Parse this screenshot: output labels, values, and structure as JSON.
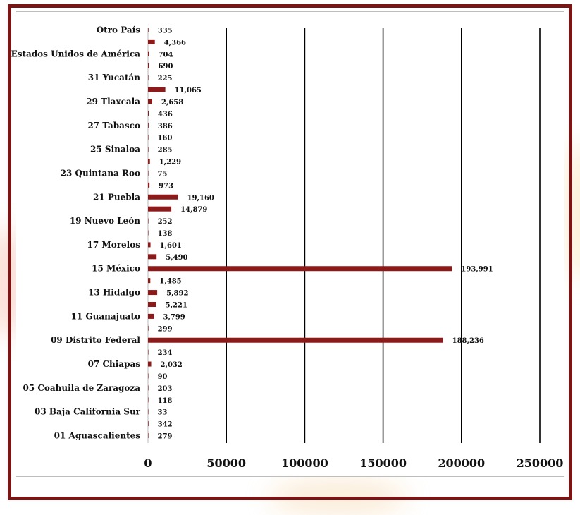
{
  "chart_data": {
    "type": "bar",
    "orientation": "horizontal",
    "title": "",
    "xlabel": "",
    "ylabel": "",
    "xlim": [
      0,
      250000
    ],
    "xticks": [
      0,
      50000,
      100000,
      150000,
      200000,
      250000
    ],
    "xtick_labels": [
      "0",
      "50000",
      "100000",
      "150000",
      "200000",
      "250000"
    ],
    "grid": "vertical",
    "legend": "none",
    "bar_color": "#8b1a1a",
    "categories": [
      "01 Aguascalientes",
      "",
      "03 Baja California Sur",
      "",
      "05 Coahuila de Zaragoza",
      "",
      "07 Chiapas",
      "",
      "09 Distrito Federal",
      "",
      "11 Guanajuato",
      "",
      "13 Hidalgo",
      "",
      "15 México",
      "",
      "17 Morelos",
      "",
      "19 Nuevo León",
      "",
      "21 Puebla",
      "",
      "23 Quintana Roo",
      "",
      "25 Sinaloa",
      "",
      "27 Tabasco",
      "",
      "29 Tlaxcala",
      "",
      "31 Yucatán",
      "",
      "Estados Unidos de América",
      "",
      "Otro País"
    ],
    "values": [
      279,
      342,
      33,
      118,
      203,
      90,
      2032,
      234,
      188236,
      299,
      3799,
      5221,
      5892,
      1485,
      193991,
      5490,
      1601,
      138,
      252,
      14879,
      19160,
      973,
      75,
      1229,
      285,
      160,
      386,
      436,
      2658,
      11065,
      225,
      690,
      704,
      4366,
      335
    ],
    "data_labels": [
      "279",
      "342",
      "33",
      "118",
      "203",
      "90",
      "2,032",
      "234",
      "188,236",
      "299",
      "3,799",
      "5,221",
      "5,892",
      "1,485",
      "193,991",
      "5,490",
      "1,601",
      "138",
      "252",
      "14,879",
      "19,160",
      "973",
      "75",
      "1,229",
      "285",
      "160",
      "386",
      "436",
      "2,658",
      "11,065",
      "225",
      "690",
      "704",
      "4,366",
      "335"
    ]
  },
  "colors": {
    "frame": "#7a1515",
    "bar": "#8b1a1a",
    "grid": "#000000"
  }
}
